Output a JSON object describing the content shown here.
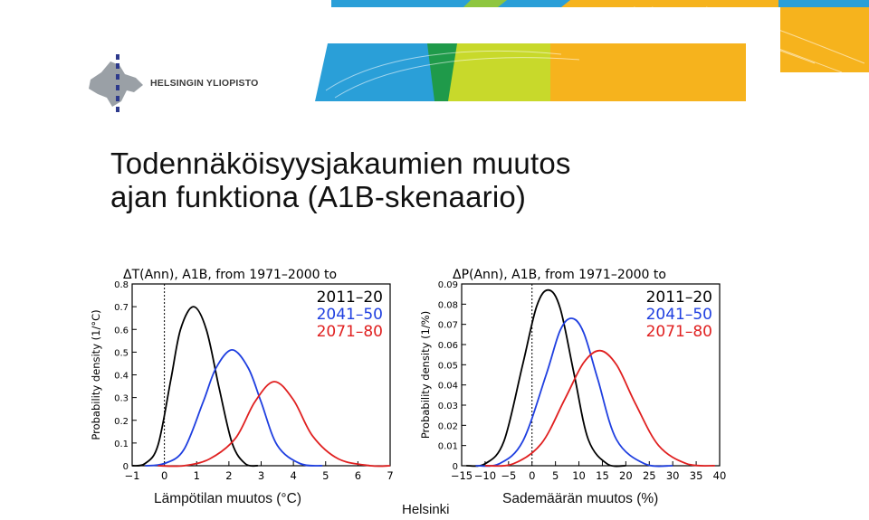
{
  "header": {
    "university_name": "HELSINGIN YLIOPISTO",
    "logo_icon": "helsinki-university-emblem-icon",
    "banner_colors": [
      "#2a9fd8",
      "#1e8ec9",
      "#1f9a4a",
      "#c8d92b",
      "#f6b31d"
    ]
  },
  "slide": {
    "title_line1": "Todennäköisyysjakaumien muutos",
    "title_line2": "ajan funktiona (A1B-skenaario)",
    "footer": "Helsinki"
  },
  "chart_data": [
    {
      "type": "line",
      "title": "ΔT(Ann), A1B, from 1971–2000 to",
      "xlabel": "Lämpötilan muutos (°C)",
      "ylabel": "Probability density (1/°C)",
      "xlim": [
        -1,
        7
      ],
      "ylim": [
        0,
        0.8
      ],
      "xticks": [
        "−1",
        "0",
        "1",
        "2",
        "3",
        "4",
        "5",
        "6",
        "7"
      ],
      "yticks": [
        "0",
        "0.1",
        "0.2",
        "0.3",
        "0.4",
        "0.5",
        "0.6",
        "0.7",
        "0.8"
      ],
      "vline_x": 0,
      "legend_position": "top-right",
      "series": [
        {
          "name": "2011–20",
          "color": "#000000",
          "x": [
            -0.6,
            -0.2,
            0.2,
            0.5,
            0.9,
            1.3,
            1.7,
            2.1,
            2.5
          ],
          "y": [
            0.01,
            0.09,
            0.38,
            0.6,
            0.7,
            0.6,
            0.34,
            0.1,
            0.01
          ]
        },
        {
          "name": "2041–50",
          "color": "#1f3fe0",
          "x": [
            0.0,
            0.6,
            1.2,
            1.6,
            2.1,
            2.6,
            3.0,
            3.5,
            4.2
          ],
          "y": [
            0.01,
            0.07,
            0.28,
            0.43,
            0.51,
            0.43,
            0.28,
            0.09,
            0.01
          ]
        },
        {
          "name": "2071–80",
          "color": "#e02020",
          "x": [
            0.6,
            1.4,
            2.2,
            2.8,
            3.4,
            4.0,
            4.6,
            5.4,
            6.4
          ],
          "y": [
            0.0,
            0.03,
            0.12,
            0.28,
            0.37,
            0.29,
            0.13,
            0.03,
            0.0
          ]
        }
      ]
    },
    {
      "type": "line",
      "title": "ΔP(Ann), A1B, from 1971–2000 to",
      "xlabel": "Sademäärän muutos (%)",
      "ylabel": "Probability density (1/%)",
      "xlim": [
        -15,
        40
      ],
      "ylim": [
        0,
        0.09
      ],
      "xticks": [
        "−15",
        "−10",
        "−5",
        "0",
        "5",
        "10",
        "15",
        "20",
        "25",
        "30",
        "35",
        "40"
      ],
      "yticks": [
        "0",
        "0.01",
        "0.02",
        "0.03",
        "0.04",
        "0.05",
        "0.06",
        "0.07",
        "0.08",
        "0.09"
      ],
      "vline_x": 0,
      "legend_position": "top-right",
      "series": [
        {
          "name": "2011–20",
          "color": "#000000",
          "x": [
            -10,
            -6,
            -2,
            1,
            3.5,
            6,
            9,
            12,
            16
          ],
          "y": [
            0.001,
            0.012,
            0.05,
            0.079,
            0.087,
            0.078,
            0.045,
            0.013,
            0.001
          ]
        },
        {
          "name": "2041–50",
          "color": "#1f3fe0",
          "x": [
            -7,
            -2,
            3,
            6,
            8.5,
            11,
            14,
            18,
            24
          ],
          "y": [
            0.001,
            0.012,
            0.045,
            0.067,
            0.073,
            0.066,
            0.043,
            0.013,
            0.001
          ]
        },
        {
          "name": "2071–80",
          "color": "#e02020",
          "x": [
            -4,
            2,
            7,
            11,
            14.5,
            18,
            22,
            27,
            33
          ],
          "y": [
            0.001,
            0.011,
            0.033,
            0.051,
            0.057,
            0.05,
            0.031,
            0.01,
            0.001
          ]
        }
      ]
    }
  ]
}
